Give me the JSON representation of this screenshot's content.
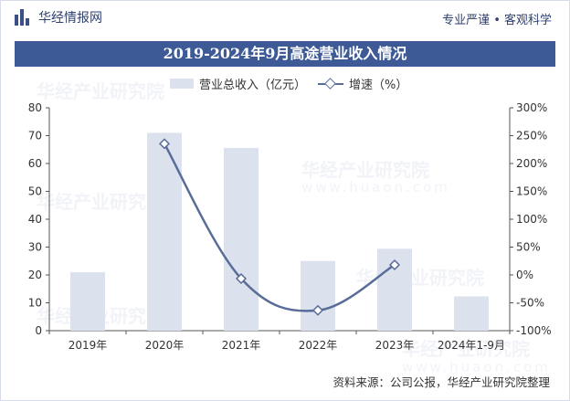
{
  "header": {
    "brand": "华经情报网",
    "slogan": "专业严谨 • 客观科学"
  },
  "chart_data": {
    "type": "bar",
    "title": "2019-2024年9月高途营业收入情况",
    "categories": [
      "2019年",
      "2020年",
      "2021年",
      "2022年",
      "2023年",
      "2024年1-9月"
    ],
    "series": [
      {
        "name": "营业总收入（亿元）",
        "type": "bar",
        "axis": "left",
        "values": [
          21,
          71,
          65.6,
          25,
          29.4,
          12.3
        ],
        "color": "#dce1ee"
      },
      {
        "name": "增速（%）",
        "type": "line",
        "axis": "right",
        "values": [
          null,
          235.5,
          -6.6,
          -63.6,
          18.1,
          null
        ],
        "color": "#5a6d99"
      }
    ],
    "y_left": {
      "min": 0,
      "max": 80,
      "ticks": [
        "0",
        "10",
        "20",
        "30",
        "40",
        "50",
        "60",
        "70",
        "80"
      ]
    },
    "y_right": {
      "min": -100,
      "max": 300,
      "ticks": [
        "-100%",
        "-50%",
        "0%",
        "50%",
        "100%",
        "150%",
        "200%",
        "250%",
        "300%"
      ]
    },
    "legend_position": "top",
    "grid": false
  },
  "watermark": {
    "cn": "华经产业研究院",
    "en": "www.huaon.com"
  },
  "footer": {
    "source": "资料来源：公司公报，华经产业研究院整理"
  }
}
